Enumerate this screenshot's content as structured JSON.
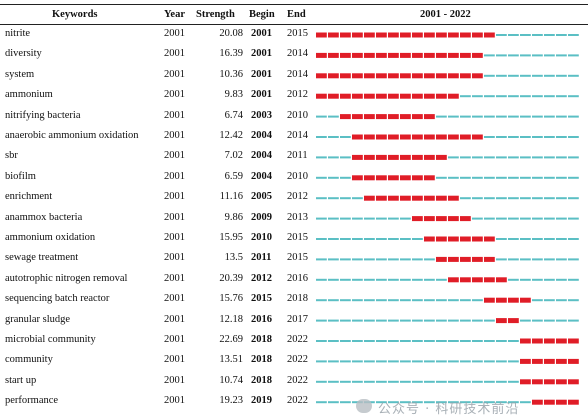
{
  "chart_data": {
    "type": "table",
    "headers": {
      "keywords": "Keywords",
      "year": "Year",
      "strength": "Strength",
      "begin": "Begin",
      "end": "End",
      "range": "2001 - 2022"
    },
    "range_start": 2001,
    "range_end": 2022,
    "colors": {
      "burst": "#e01d27",
      "base": "#5bbfc4"
    },
    "rows": [
      {
        "keyword": "nitrite",
        "year": "2001",
        "strength": "20.08",
        "begin": "2001",
        "end": "2015"
      },
      {
        "keyword": "diversity",
        "year": "2001",
        "strength": "16.39",
        "begin": "2001",
        "end": "2014"
      },
      {
        "keyword": "system",
        "year": "2001",
        "strength": "10.36",
        "begin": "2001",
        "end": "2014"
      },
      {
        "keyword": "ammonium",
        "year": "2001",
        "strength": "9.83",
        "begin": "2001",
        "end": "2012"
      },
      {
        "keyword": "nitrifying bacteria",
        "year": "2001",
        "strength": "6.74",
        "begin": "2003",
        "end": "2010"
      },
      {
        "keyword": "anaerobic ammonium oxidation",
        "year": "2001",
        "strength": "12.42",
        "begin": "2004",
        "end": "2014"
      },
      {
        "keyword": "sbr",
        "year": "2001",
        "strength": "7.02",
        "begin": "2004",
        "end": "2011"
      },
      {
        "keyword": "biofilm",
        "year": "2001",
        "strength": "6.59",
        "begin": "2004",
        "end": "2010"
      },
      {
        "keyword": "enrichment",
        "year": "2001",
        "strength": "11.16",
        "begin": "2005",
        "end": "2012"
      },
      {
        "keyword": "anammox bacteria",
        "year": "2001",
        "strength": "9.86",
        "begin": "2009",
        "end": "2013"
      },
      {
        "keyword": "ammonium oxidation",
        "year": "2001",
        "strength": "15.95",
        "begin": "2010",
        "end": "2015"
      },
      {
        "keyword": "sewage treatment",
        "year": "2001",
        "strength": "13.5",
        "begin": "2011",
        "end": "2015"
      },
      {
        "keyword": "autotrophic nitrogen removal",
        "year": "2001",
        "strength": "20.39",
        "begin": "2012",
        "end": "2016"
      },
      {
        "keyword": "sequencing batch reactor",
        "year": "2001",
        "strength": "15.76",
        "begin": "2015",
        "end": "2018"
      },
      {
        "keyword": "granular sludge",
        "year": "2001",
        "strength": "12.18",
        "begin": "2016",
        "end": "2017"
      },
      {
        "keyword": "microbial community",
        "year": "2001",
        "strength": "22.69",
        "begin": "2018",
        "end": "2022"
      },
      {
        "keyword": "community",
        "year": "2001",
        "strength": "13.51",
        "begin": "2018",
        "end": "2022"
      },
      {
        "keyword": "start up",
        "year": "2001",
        "strength": "10.74",
        "begin": "2018",
        "end": "2022"
      },
      {
        "keyword": "performance",
        "year": "2001",
        "strength": "19.23",
        "begin": "2019",
        "end": "2022"
      }
    ]
  },
  "watermark": "公众号 · 科研技术前沿"
}
